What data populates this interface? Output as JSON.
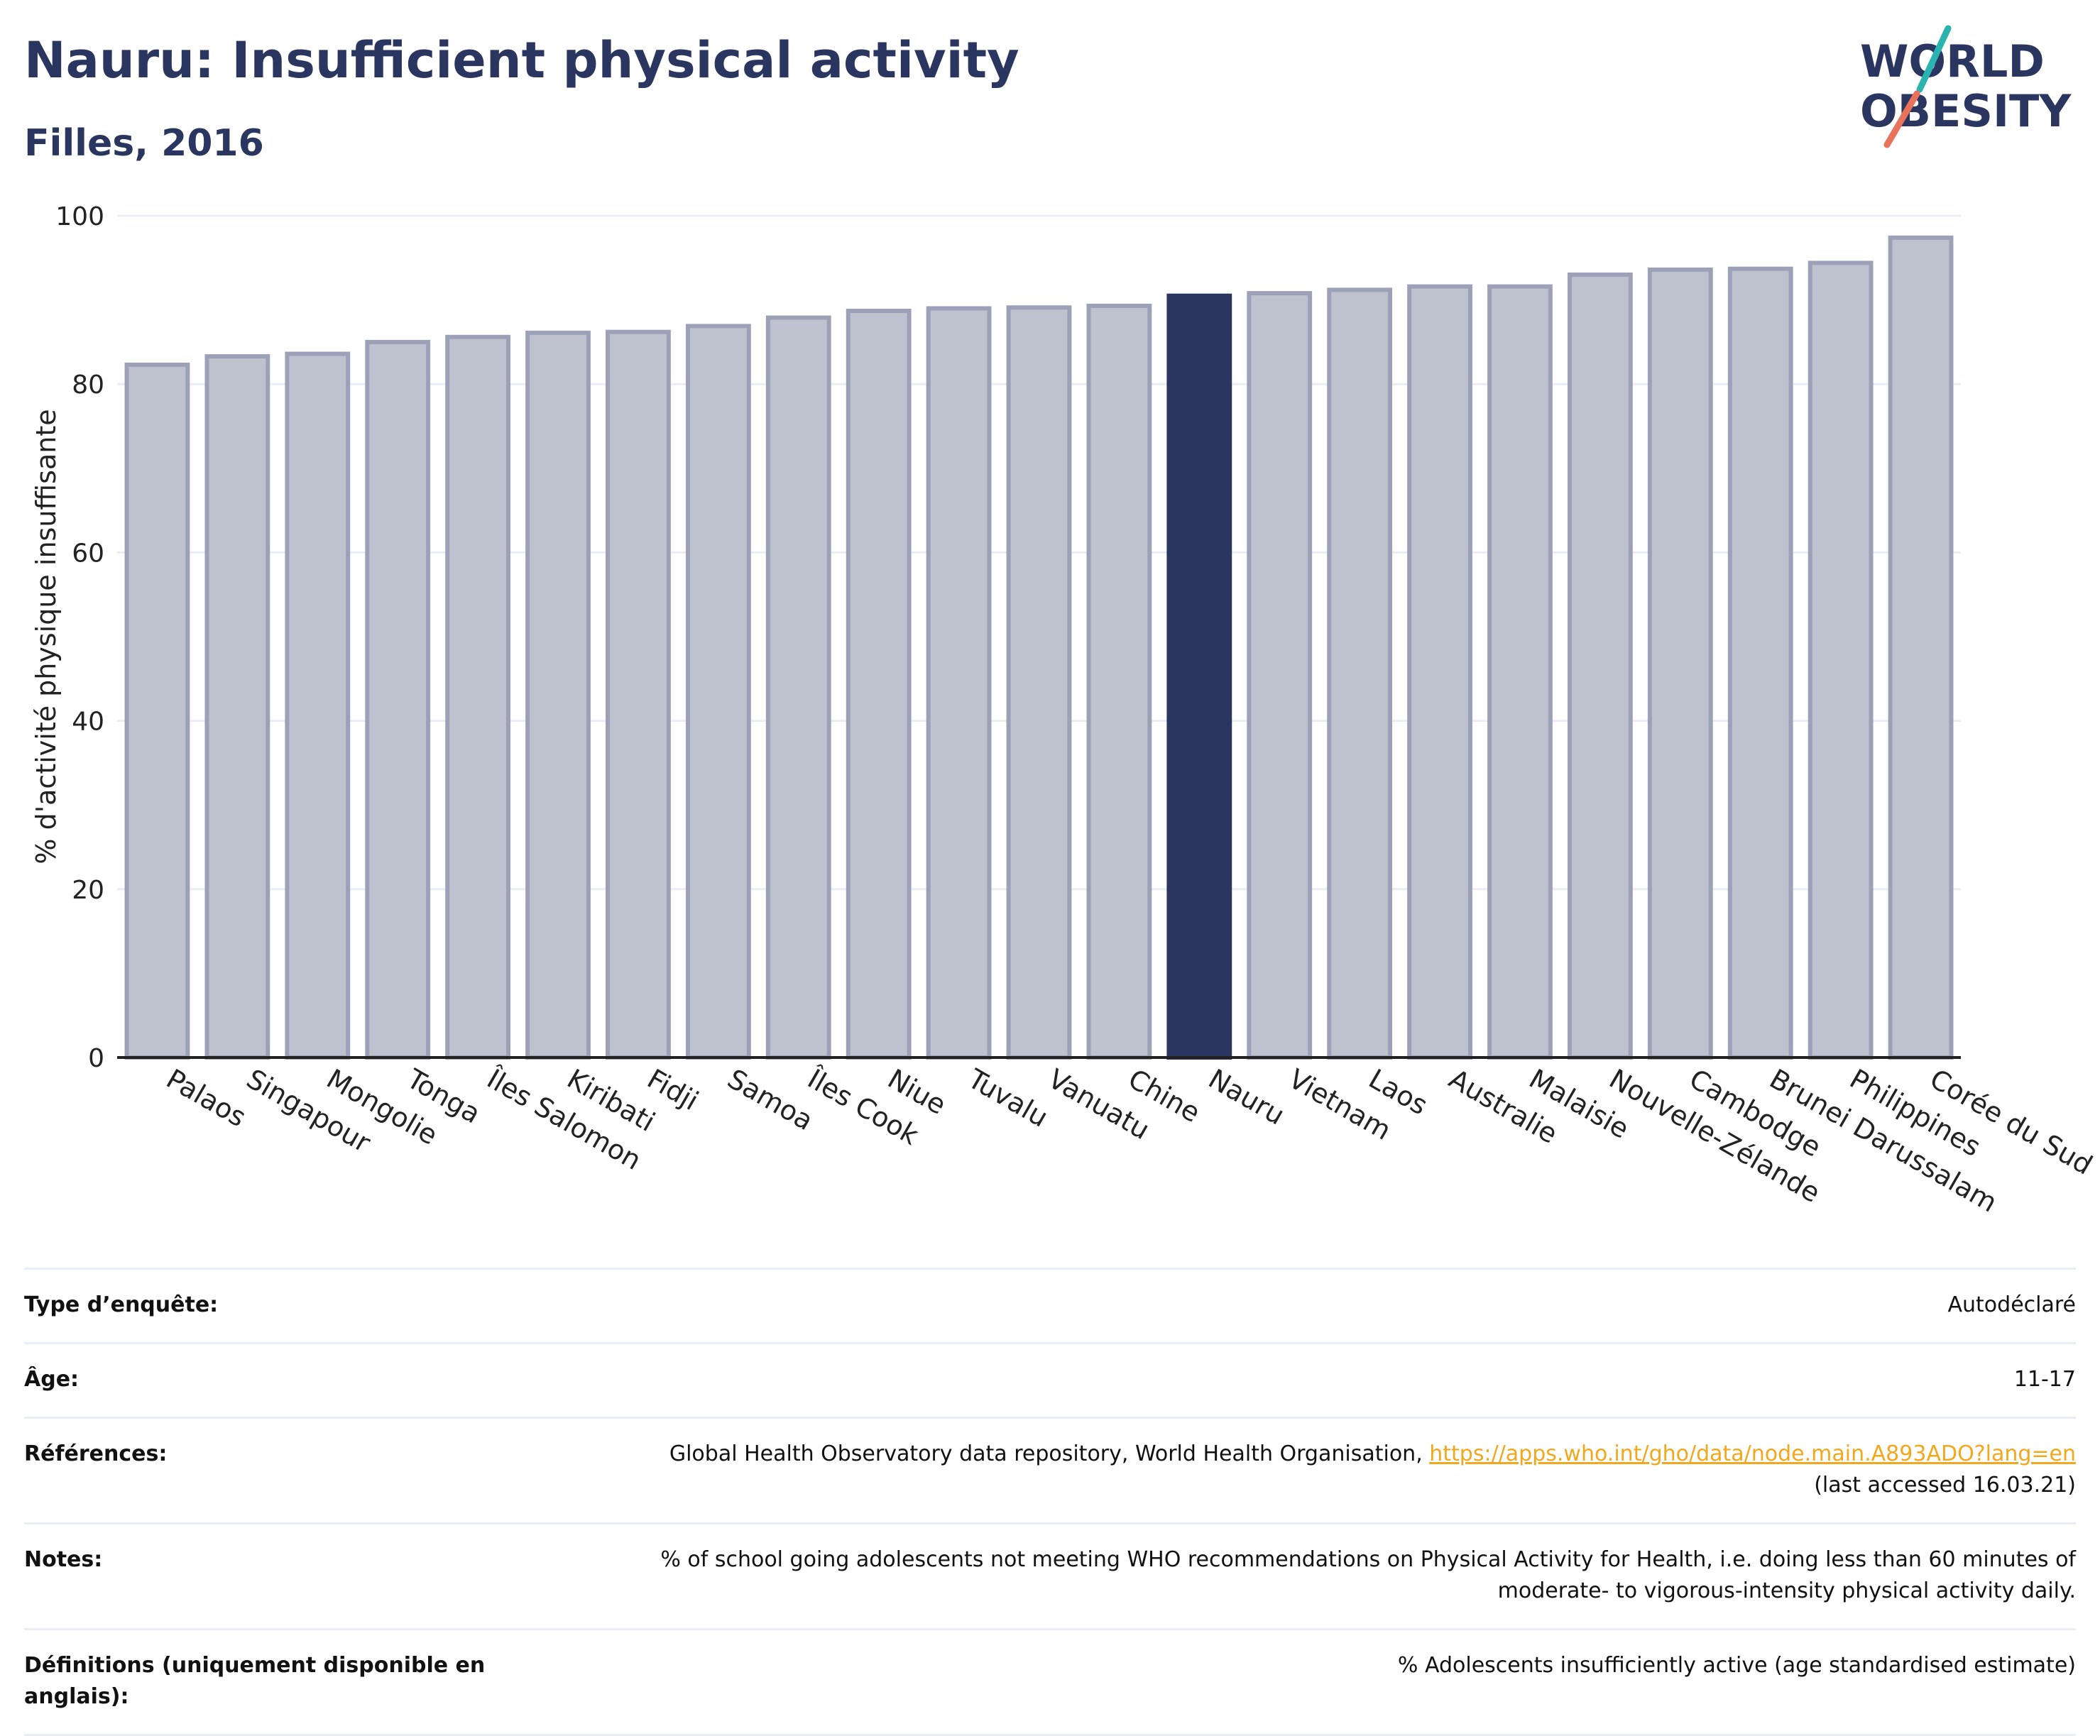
{
  "header": {
    "title": "Nauru: Insufficient physical activity",
    "subtitle": "Filles, 2016"
  },
  "logo": {
    "line1": "WORLD",
    "line2": "OBESITY",
    "teal": "#2ab4b0",
    "coral": "#e8735a",
    "navy": "#2a3560"
  },
  "colors": {
    "bar": "#bec2cf",
    "bar_edge": "#9ca1b8",
    "highlight": "#2a3560",
    "grid": "#eaedf3"
  },
  "chart_data": {
    "type": "bar",
    "ylabel": "% d'activité physique insuffisante",
    "xlabel": "",
    "ylim": [
      0,
      100
    ],
    "yticks": [
      0,
      20,
      40,
      60,
      80,
      100
    ],
    "grid": true,
    "highlight": "Nauru",
    "categories": [
      "Palaos",
      "Singapour",
      "Mongolie",
      "Tonga",
      "Îles Salomon",
      "Kiribati",
      "Fidji",
      "Samoa",
      "Îles Cook",
      "Niue",
      "Tuvalu",
      "Vanuatu",
      "Chine",
      "Nauru",
      "Vietnam",
      "Laos",
      "Australie",
      "Malaisie",
      "Nouvelle-Zélande",
      "Cambodge",
      "Brunei Darussalam",
      "Philippines",
      "Corée du Sud"
    ],
    "values": [
      82.3,
      83.3,
      83.6,
      85.0,
      85.6,
      86.1,
      86.2,
      86.9,
      87.9,
      88.7,
      89.0,
      89.1,
      89.3,
      90.5,
      90.8,
      91.2,
      91.6,
      91.6,
      93.0,
      93.6,
      93.7,
      94.4,
      97.4
    ]
  },
  "info": {
    "survey_label": "Type d’enquête:",
    "survey_value": "Autodéclaré",
    "age_label": "Âge:",
    "age_value": "11-17",
    "refs_label": "Références:",
    "refs_text": "Global Health Observatory data repository, World Health Organisation, ",
    "refs_link": "https://apps.who.int/gho/data/node.main.A893ADO?lang=en",
    "refs_tail": "(last accessed 16.03.21)",
    "notes_label": "Notes:",
    "notes_line1": "% of school going adolescents not meeting WHO recommendations on Physical Activity for Health, i.e. doing less than 60 minutes of",
    "notes_line2": "moderate- to vigorous-intensity physical activity daily.",
    "defs_label": "Définitions (uniquement disponible en anglais):",
    "defs_value": "% Adolescents insufficiently active (age standardised estimate)"
  }
}
